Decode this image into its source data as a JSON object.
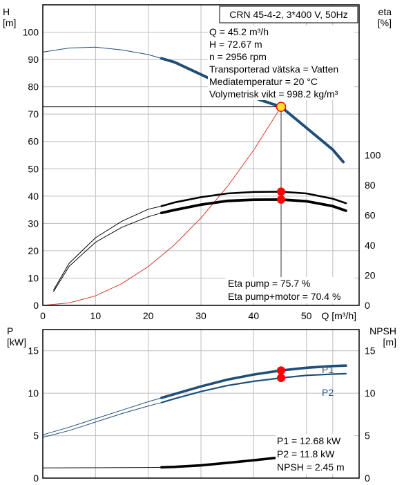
{
  "colors": {
    "head": "#1f4e79",
    "efficiency": "#000000",
    "system": "#d93a2b",
    "power_label": "#2a5a8c",
    "marker": "#ff0000",
    "duty_marker": "#ffe033",
    "grid": "#bdbdbd"
  },
  "chart_data": [
    {
      "type": "line",
      "title": "CRN 45-4-2, 3*400 V, 50Hz",
      "xlabel": "Q [m³/h]",
      "ylabel_left": "H\n[m]",
      "ylabel_right": "eta\n[%]",
      "xlim": [
        0,
        60
      ],
      "ylim_left": [
        0,
        110
      ],
      "ylim_right": [
        0,
        200
      ],
      "xticks": [
        "0",
        "10",
        "20",
        "30",
        "40",
        "50"
      ],
      "yticks_left": [
        "0",
        "10",
        "20",
        "30",
        "40",
        "50",
        "60",
        "70",
        "80",
        "90",
        "100"
      ],
      "yticks_right": [
        "0",
        "20",
        "40",
        "60",
        "80",
        "100"
      ],
      "grid": true,
      "duty_point": {
        "q": 45.2,
        "h": 72.67
      },
      "series": [
        {
          "key": "head",
          "axis": "left",
          "x": [
            0,
            5,
            10,
            15,
            20,
            22.5,
            25,
            30,
            35,
            40,
            45.2,
            50,
            55,
            57
          ],
          "y": [
            92.7,
            94.2,
            94.5,
            93.5,
            91.8,
            90.4,
            89,
            84.5,
            80,
            76,
            72.67,
            65,
            57,
            52.5
          ],
          "operating_range": [
            22.5,
            57
          ]
        },
        {
          "key": "eta_pump",
          "axis": "right",
          "x": [
            2,
            5,
            10,
            15,
            20,
            22.5,
            25,
            30,
            35,
            40,
            45.2,
            50,
            55,
            57.5
          ],
          "y": [
            10,
            28,
            45,
            56,
            64,
            66,
            68.5,
            72,
            74.5,
            75.5,
            75.7,
            74.5,
            71,
            68
          ],
          "operating_range": [
            22.5,
            57.5
          ]
        },
        {
          "key": "eta_pump_motor",
          "axis": "right",
          "x": [
            2,
            5,
            10,
            15,
            20,
            22.5,
            25,
            30,
            35,
            40,
            45.2,
            50,
            55,
            57.5
          ],
          "y": [
            9,
            26,
            42,
            52,
            59,
            61.5,
            63.5,
            67,
            69.5,
            70.3,
            70.4,
            69.3,
            66,
            63
          ],
          "operating_range": [
            22.5,
            57.5
          ]
        },
        {
          "key": "system_curve",
          "axis": "left",
          "x": [
            0,
            5,
            10,
            15,
            20,
            25,
            30,
            35,
            40,
            45.2
          ],
          "y": [
            0,
            0.9,
            3.5,
            8,
            14.2,
            22.2,
            32,
            43.5,
            56.8,
            72.67
          ]
        }
      ],
      "markers": [
        {
          "axis": "right",
          "x": 45.2,
          "y": 75.7
        },
        {
          "axis": "right",
          "x": 45.2,
          "y": 70.4
        }
      ],
      "info_top": [
        "Q = 45.2 m³/h",
        "H = 72.67 m",
        "n = 2956 rpm",
        "Transporterad vätska = Vatten",
        "Mediatemperatur = 20 °C",
        "Volymetrisk vikt = 998.2 kg/m³"
      ],
      "info_bottom": [
        "Eta pump = 75.7 %",
        "Eta pump+motor = 70.4 %"
      ]
    },
    {
      "type": "line",
      "xlabel": "",
      "ylabel_left": "P\n[kW]",
      "ylabel_right": "NPSH\n[m]",
      "xlim": [
        0,
        60
      ],
      "ylim_left": [
        0,
        17.5
      ],
      "ylim_right": [
        0,
        17.5
      ],
      "yticks_left": [
        "0",
        "5",
        "10",
        "15"
      ],
      "yticks_right": [
        "0",
        "5",
        "10",
        "15"
      ],
      "grid": true,
      "series": [
        {
          "key": "p1",
          "name": "P1",
          "axis": "left",
          "x": [
            0,
            5,
            10,
            15,
            20,
            22.5,
            25,
            30,
            35,
            40,
            45.2,
            50,
            55,
            57.5
          ],
          "y": [
            5.1,
            6.0,
            7.0,
            8.0,
            9.0,
            9.45,
            9.9,
            10.8,
            11.6,
            12.2,
            12.68,
            13.0,
            13.2,
            13.25
          ],
          "operating_range": [
            22.5,
            57.5
          ]
        },
        {
          "key": "p2",
          "name": "P2",
          "axis": "left",
          "x": [
            0,
            5,
            10,
            15,
            20,
            22.5,
            25,
            30,
            35,
            40,
            45.2,
            50,
            55,
            57.5
          ],
          "y": [
            4.8,
            5.6,
            6.6,
            7.6,
            8.5,
            8.9,
            9.35,
            10.2,
            10.9,
            11.4,
            11.8,
            12.1,
            12.25,
            12.3
          ],
          "operating_range": [
            22.5,
            57.5
          ]
        },
        {
          "key": "npsh",
          "axis": "right",
          "x": [
            0,
            10,
            20,
            22.5,
            25,
            30,
            35,
            40,
            45.2
          ],
          "y": [
            1.2,
            1.22,
            1.25,
            1.27,
            1.32,
            1.5,
            1.8,
            2.1,
            2.45
          ],
          "operating_range": [
            22.5,
            45.2
          ]
        }
      ],
      "markers": [
        {
          "axis": "left",
          "x": 45.2,
          "y": 12.68
        },
        {
          "axis": "left",
          "x": 45.2,
          "y": 11.8
        },
        {
          "axis": "right",
          "x": 45.2,
          "y": 2.45
        }
      ],
      "info_bottom": [
        "P1 = 12.68 kW",
        "P2 = 11.8 kW",
        "NPSH = 2.45 m"
      ]
    }
  ]
}
